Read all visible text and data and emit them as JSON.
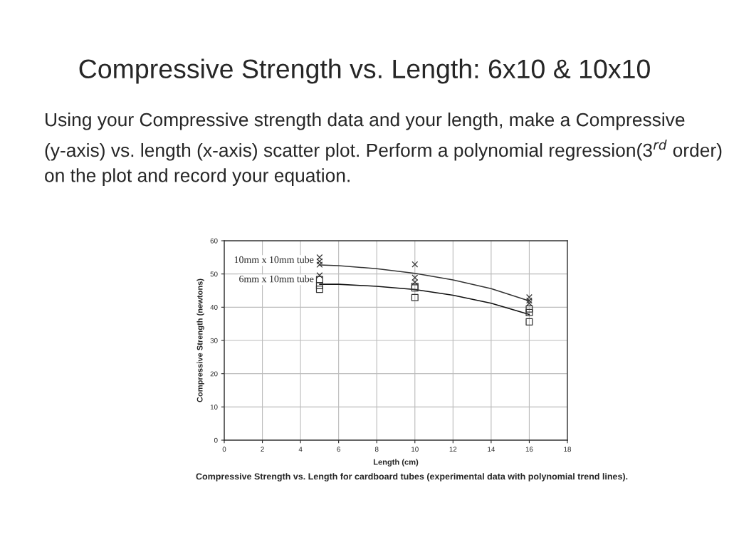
{
  "chart_data": {
    "type": "scatter",
    "title": "Compressive Strength vs. Length: 6x10 & 10x10",
    "subtitle": "Using your Compressive strength data and your length, make a Compressive (y-axis) vs. length (x-axis) scatter plot. Perform a polynomial regression(3$^{rd}$ order) on the plot and record your equation.",
    "xlabel": "Length (cm)",
    "ylabel": "Compressive Strength (newtons)",
    "annotations": [
      "Compressive Strength vs. Length for cardboard tubes (experimental data with polynomial trend lines)."
    ],
    "xlim": [
      0,
      18
    ],
    "xticks": [
      0,
      2,
      4,
      6,
      8,
      10,
      12,
      14,
      16,
      18
    ],
    "ylim": [
      0,
      60
    ],
    "yticks": [
      0,
      10,
      20,
      30,
      40,
      50,
      60
    ],
    "grid": true,
    "legend": false,
    "series": [
      {
        "marker": "cross",
        "color": "#333333",
        "x": [
          5,
          5,
          5,
          5,
          10,
          10,
          10,
          16,
          16,
          16
        ],
        "values": [
          55.0,
          53.8,
          52.8,
          49.6,
          52.9,
          48.9,
          47.5,
          43.0,
          42.0,
          41.2
        ]
      },
      {
        "marker": "square",
        "color": "#333333",
        "x": [
          5,
          5,
          5,
          10,
          10,
          10,
          16,
          16,
          16
        ],
        "values": [
          48.3,
          46.5,
          45.4,
          46.3,
          45.8,
          42.9,
          39.5,
          38.4,
          35.6
        ]
      },
      {
        "type": "line",
        "name": "10mm x 10mm tube",
        "color": "#333333",
        "x": [
          5,
          6,
          8,
          10,
          12,
          14,
          16
        ],
        "values": [
          52.7,
          52.5,
          51.6,
          50.2,
          48.2,
          45.6,
          41.9
        ]
      },
      {
        "type": "line",
        "name": "6mm x 10mm tube",
        "color": "#111111",
        "x": [
          5,
          6,
          8,
          10,
          12,
          14,
          16
        ],
        "values": [
          46.9,
          46.9,
          46.3,
          45.3,
          43.6,
          41.2,
          37.8
        ]
      }
    ]
  }
}
